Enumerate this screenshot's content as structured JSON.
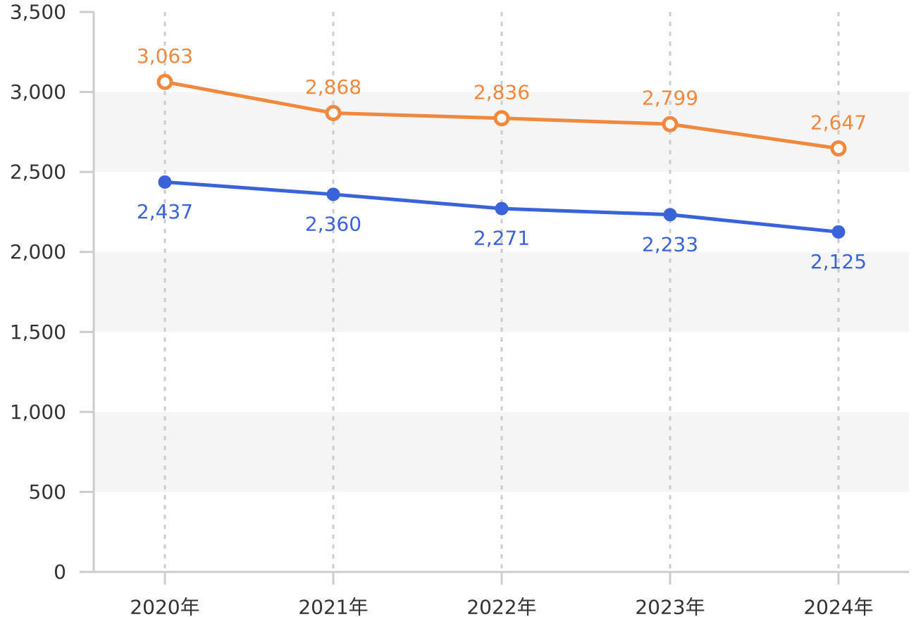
{
  "colors": {
    "background": "#ffffff",
    "band_shaded": "#f5f5f5",
    "axis": "#cccccc",
    "vgrid": "#cccccc",
    "tick_text": "#333333"
  },
  "chart_data": {
    "type": "line",
    "title": "",
    "xlabel": "",
    "ylabel": "",
    "categories": [
      "2020年",
      "2021年",
      "2022年",
      "2023年",
      "2024年"
    ],
    "ylim": [
      0,
      3500
    ],
    "yticks": [
      0,
      500,
      1000,
      1500,
      2000,
      2500,
      3000,
      3500
    ],
    "ytick_labels": [
      "0",
      "500",
      "1,000",
      "1,500",
      "2,000",
      "2,500",
      "3,000",
      "3,500"
    ],
    "grid": "alternating horizontal bands, dotted vertical lines",
    "legend": "none",
    "series": [
      {
        "color": "#f0883e",
        "marker": "hollow-circle",
        "label_position": "above",
        "values": [
          3063,
          2868,
          2836,
          2799,
          2647
        ],
        "labels": [
          "3,063",
          "2,868",
          "2,836",
          "2,799",
          "2,647"
        ]
      },
      {
        "color": "#3b63d9",
        "marker": "filled-circle",
        "label_position": "below",
        "values": [
          2437,
          2360,
          2271,
          2233,
          2125
        ],
        "labels": [
          "2,437",
          "2,360",
          "2,271",
          "2,233",
          "2,125"
        ]
      }
    ]
  }
}
